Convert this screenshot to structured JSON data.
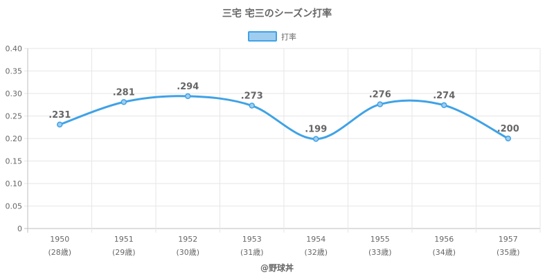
{
  "chart_data": {
    "type": "line",
    "title": "三宅 宅三のシーズン打率",
    "categories": [
      "1950",
      "1951",
      "1952",
      "1953",
      "1954",
      "1955",
      "1956",
      "1957"
    ],
    "sublabels": [
      "(28歳)",
      "(29歳)",
      "(30歳)",
      "(31歳)",
      "(32歳)",
      "(33歳)",
      "(34歳)",
      "(35歳)"
    ],
    "series": [
      {
        "name": "打率",
        "values": [
          0.231,
          0.281,
          0.294,
          0.273,
          0.199,
          0.276,
          0.274,
          0.2
        ],
        "labels": [
          ".231",
          ".281",
          ".294",
          ".273",
          ".199",
          ".276",
          ".274",
          ".200"
        ],
        "color": "#3fa2e6",
        "fill": "#9fcdf0"
      }
    ],
    "ylim": [
      0,
      0.4
    ],
    "yticks": [
      "0",
      "0.05",
      "0.10",
      "0.15",
      "0.20",
      "0.25",
      "0.30",
      "0.35",
      "0.40"
    ],
    "grid": true,
    "legend": "top-center",
    "xlabel": "",
    "ylabel": ""
  },
  "credit": "@野球丼"
}
